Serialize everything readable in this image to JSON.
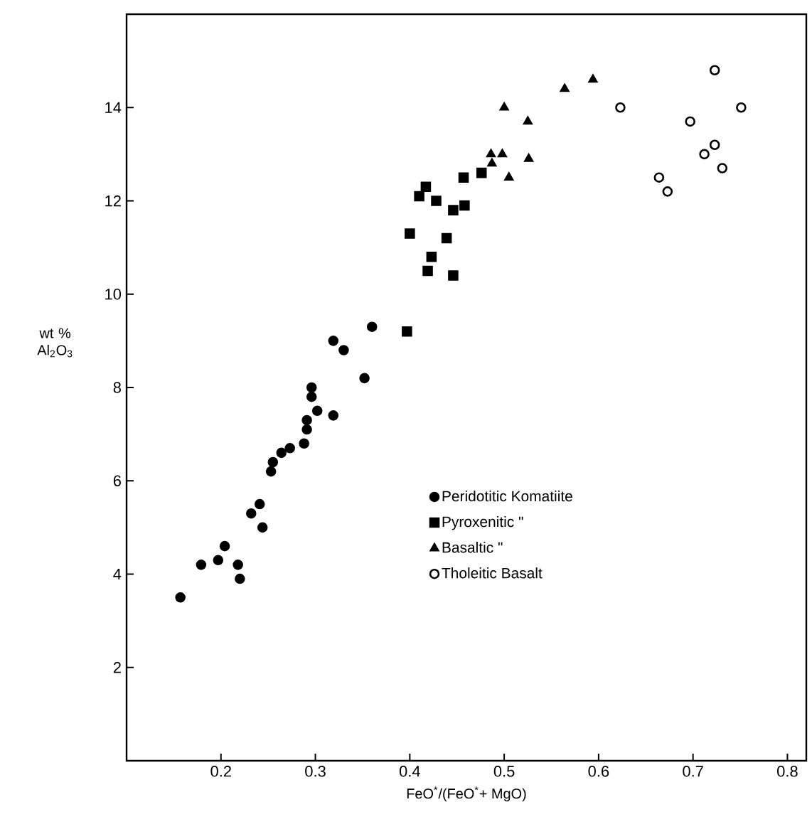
{
  "chart_data": {
    "type": "scatter",
    "xlabel": "FeO$^{*}$/(FeO$^{*}$+ MgO)",
    "ylabel": "wt % Al$_{2}$O$_{3}$",
    "xlim": [
      0.1,
      0.82
    ],
    "ylim": [
      0,
      16
    ],
    "xticks": [
      0.2,
      0.3,
      0.4,
      0.5,
      0.6,
      0.7,
      0.8
    ],
    "yticks": [
      2,
      4,
      6,
      8,
      10,
      12,
      14
    ],
    "grid": false,
    "legend": "right",
    "series": [
      {
        "name": "Peridotitic Komatiite",
        "color": "#000000",
        "marker": "circle",
        "x": [
          0.157,
          0.179,
          0.197,
          0.204,
          0.218,
          0.22,
          0.232,
          0.241,
          0.244,
          0.253,
          0.255,
          0.264,
          0.273,
          0.288,
          0.291,
          0.291,
          0.296,
          0.296,
          0.302,
          0.319,
          0.319,
          0.33,
          0.352,
          0.36
        ],
        "values": [
          3.5,
          4.2,
          4.3,
          4.6,
          4.2,
          3.9,
          5.3,
          5.5,
          5.0,
          6.2,
          6.4,
          6.6,
          6.7,
          6.8,
          7.1,
          7.3,
          7.8,
          8.0,
          7.5,
          7.4,
          9.0,
          8.8,
          8.2,
          9.3
        ]
      },
      {
        "name": "Pyroxenitic \"",
        "color": "#000000",
        "marker": "square",
        "x": [
          0.397,
          0.417,
          0.41,
          0.428,
          0.457,
          0.476,
          0.446,
          0.458,
          0.4,
          0.439,
          0.423,
          0.419,
          0.446
        ],
        "values": [
          9.2,
          12.3,
          12.1,
          12.0,
          12.5,
          12.6,
          11.8,
          11.9,
          11.3,
          11.2,
          10.8,
          10.5,
          10.4
        ]
      },
      {
        "name": "Basaltic \"",
        "color": "#000000",
        "marker": "triangle",
        "x": [
          0.5,
          0.525,
          0.486,
          0.498,
          0.487,
          0.505,
          0.526,
          0.564,
          0.594
        ],
        "values": [
          14.0,
          13.7,
          13.0,
          13.0,
          12.8,
          12.5,
          12.9,
          14.4,
          14.6
        ]
      },
      {
        "name": "Tholeitic Basalt",
        "color": "#000000",
        "marker": "circle-open",
        "x": [
          0.623,
          0.723,
          0.751,
          0.697,
          0.723,
          0.712,
          0.731,
          0.664,
          0.673
        ],
        "values": [
          14.0,
          14.8,
          14.0,
          13.7,
          13.2,
          13.0,
          12.7,
          12.5,
          12.2
        ]
      }
    ]
  }
}
